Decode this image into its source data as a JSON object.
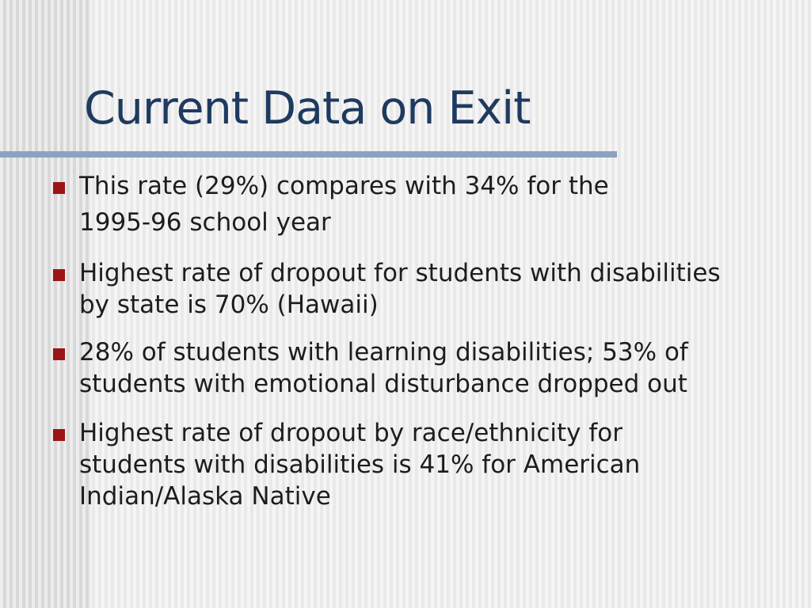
{
  "slide": {
    "title": "Current Data on Exit",
    "bullets": [
      {
        "lines": [
          "This rate (29%) compares with 34% for the",
          "1995-96 school year"
        ]
      },
      {
        "lines": [
          "Highest rate of dropout for students with disabilities",
          "by state is 70% (Hawaii)"
        ]
      },
      {
        "lines": [
          "28% of students with learning disabilities; 53% of",
          "students with emotional disturbance dropped out"
        ]
      },
      {
        "lines": [
          "Highest rate of dropout by race/ethnicity for",
          "students with disabilities is 41% for American",
          "Indian/Alaska Native"
        ]
      }
    ]
  },
  "colors": {
    "title_navy": "#1E3A5F",
    "rule_steel_blue": "#8BA3C0",
    "bullet_maroon": "#9B1515",
    "body_text": "#1D1D1D"
  }
}
